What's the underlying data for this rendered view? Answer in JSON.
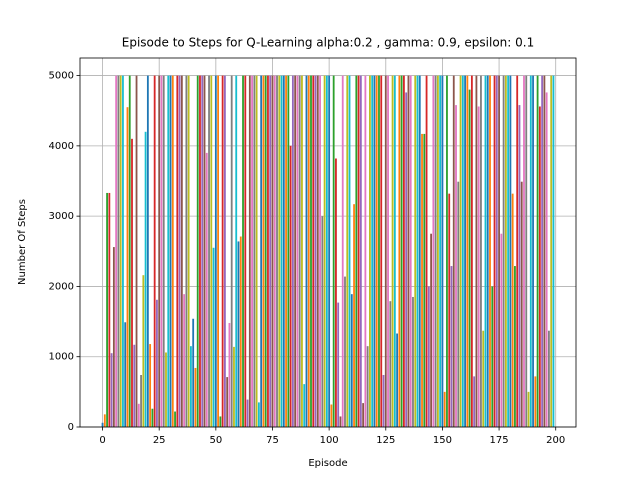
{
  "chart_data": {
    "type": "bar",
    "title": "Episode to Steps for Q-Learning alpha:0.2 , gamma: 0.9, epsilon: 0.1",
    "x_label": "Episode",
    "y_label": "Number Of Steps",
    "x": [
      0,
      1,
      2,
      3,
      4,
      5,
      6,
      7,
      8,
      9,
      10,
      11,
      12,
      13,
      14,
      15,
      16,
      17,
      18,
      19,
      20,
      21,
      22,
      23,
      24,
      25,
      26,
      27,
      28,
      29,
      30,
      31,
      32,
      33,
      34,
      35,
      36,
      37,
      38,
      39,
      40,
      41,
      42,
      43,
      44,
      45,
      46,
      47,
      48,
      49,
      50,
      51,
      52,
      53,
      54,
      55,
      56,
      57,
      58,
      59,
      60,
      61,
      62,
      63,
      64,
      65,
      66,
      67,
      68,
      69,
      70,
      71,
      72,
      73,
      74,
      75,
      76,
      77,
      78,
      79,
      80,
      81,
      82,
      83,
      84,
      85,
      86,
      87,
      88,
      89,
      90,
      91,
      92,
      93,
      94,
      95,
      96,
      97,
      98,
      99,
      100,
      101,
      102,
      103,
      104,
      105,
      106,
      107,
      108,
      109,
      110,
      111,
      112,
      113,
      114,
      115,
      116,
      117,
      118,
      119,
      120,
      121,
      122,
      123,
      124,
      125,
      126,
      127,
      128,
      129,
      130,
      131,
      132,
      133,
      134,
      135,
      136,
      137,
      138,
      139,
      140,
      141,
      142,
      143,
      144,
      145,
      146,
      147,
      148,
      149,
      150,
      151,
      152,
      153,
      154,
      155,
      156,
      157,
      158,
      159,
      160,
      161,
      162,
      163,
      164,
      165,
      166,
      167,
      168,
      169,
      170,
      171,
      172,
      173,
      174,
      175,
      176,
      177,
      178,
      179,
      180,
      181,
      182,
      183,
      184,
      185,
      186,
      187,
      188,
      189,
      190,
      191,
      192,
      193,
      194,
      195,
      196,
      197,
      198,
      199
    ],
    "values": [
      60,
      180,
      3330,
      3330,
      1050,
      2560,
      5000,
      5000,
      5000,
      5000,
      1490,
      4550,
      5000,
      4100,
      1170,
      5000,
      330,
      740,
      2160,
      4200,
      5000,
      1180,
      260,
      5000,
      1810,
      5000,
      5000,
      5000,
      1060,
      5000,
      5000,
      5000,
      220,
      5000,
      5000,
      5000,
      1890,
      5000,
      5000,
      1150,
      1540,
      840,
      5000,
      5000,
      5000,
      5000,
      3900,
      5000,
      5000,
      2550,
      5000,
      5000,
      150,
      5000,
      5000,
      710,
      1480,
      5000,
      1140,
      5000,
      2640,
      2710,
      5000,
      5000,
      390,
      5000,
      5000,
      5000,
      5000,
      350,
      5000,
      5000,
      5000,
      5000,
      5000,
      5000,
      5000,
      5000,
      5000,
      5000,
      5000,
      5000,
      5000,
      4000,
      5000,
      5000,
      5000,
      5000,
      5000,
      610,
      5000,
      5000,
      5000,
      5000,
      5000,
      5000,
      5000,
      3000,
      5000,
      5000,
      5000,
      320,
      5000,
      3820,
      1770,
      150,
      5000,
      2140,
      5000,
      5000,
      1890,
      3170,
      5000,
      5000,
      5000,
      340,
      5000,
      1150,
      5000,
      5000,
      5000,
      5000,
      5000,
      5000,
      740,
      5000,
      5000,
      1790,
      5000,
      5000,
      1330,
      5000,
      5000,
      5000,
      4760,
      5000,
      5000,
      1850,
      5000,
      5000,
      5000,
      4170,
      4170,
      5000,
      2000,
      2750,
      5000,
      5000,
      5000,
      5000,
      5000,
      500,
      5000,
      3320,
      2290,
      5000,
      4580,
      3490,
      5000,
      5000,
      5000,
      5000,
      4800,
      5000,
      720,
      5000,
      4560,
      5000,
      1370,
      5000,
      5000,
      5000,
      2000,
      5000,
      5000,
      5000,
      2750,
      5000,
      5000,
      5000,
      5000,
      3320,
      2290,
      5000,
      4580,
      3490,
      5000,
      5000,
      500,
      5000,
      5000,
      720,
      5000,
      4560,
      5000,
      5000,
      4760,
      1370,
      5000,
      5000
    ],
    "color_cycle": [
      "#1f77b4",
      "#ff7f0e",
      "#2ca02c",
      "#d62728",
      "#9467bd",
      "#8c564b",
      "#e377c2",
      "#7f7f7f",
      "#bcbd22",
      "#17becf"
    ],
    "xlim": [
      -9.95,
      208.95
    ],
    "xticks": [
      0,
      25,
      50,
      75,
      100,
      125,
      150,
      175,
      200
    ],
    "ylim": [
      0,
      5250
    ],
    "yticks": [
      0,
      1000,
      2000,
      3000,
      4000,
      5000
    ],
    "grid": true
  }
}
